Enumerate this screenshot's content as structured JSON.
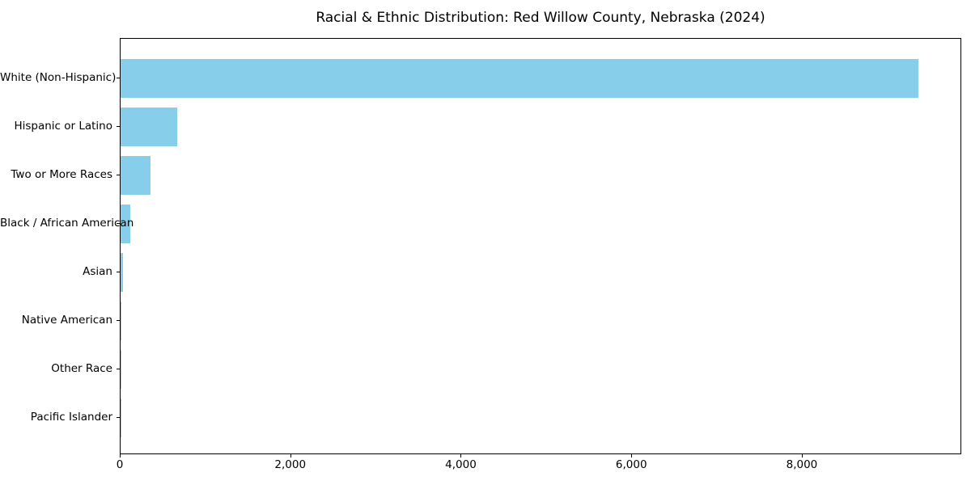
{
  "chart_data": {
    "type": "bar",
    "orientation": "horizontal",
    "title": "Racial & Ethnic Distribution: Red Willow County, Nebraska (2024)",
    "categories": [
      "White (Non-Hispanic)",
      "Hispanic or Latino",
      "Two or More Races",
      "Black / African American",
      "Asian",
      "Native American",
      "Other Race",
      "Pacific Islander"
    ],
    "values": [
      9360,
      665,
      350,
      110,
      25,
      12,
      4,
      1
    ],
    "bar_color": "#87CEEB",
    "xlim": [
      0,
      9870
    ],
    "xticks": [
      0,
      2000,
      4000,
      6000,
      8000
    ],
    "xtick_labels": [
      "0",
      "2,000",
      "4,000",
      "6,000",
      "8,000"
    ],
    "xlabel": "",
    "ylabel": "",
    "grid": false,
    "legend": "none",
    "frame": true
  }
}
